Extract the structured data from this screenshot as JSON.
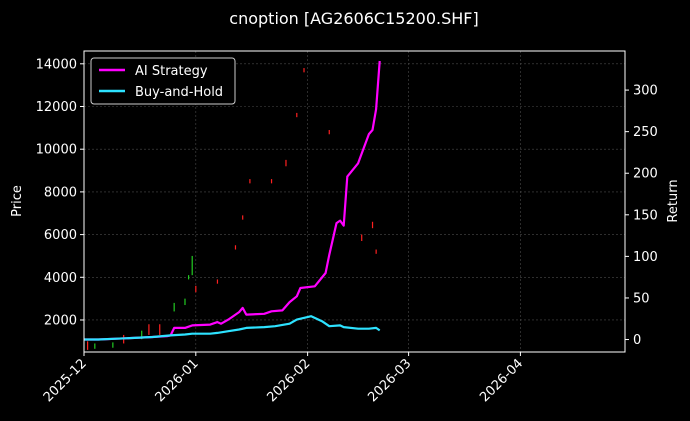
{
  "chart_data": {
    "type": "line",
    "title": "cnoption [AG2606C15200.SHF]",
    "xlabel": "",
    "ylabel_left": "Price",
    "ylabel_right": "Return",
    "x_tick_labels": [
      "2025-12",
      "2026-01",
      "2026-02",
      "2026-03",
      "2026-04"
    ],
    "x_range": [
      "2025-12-01",
      "2026-04-30"
    ],
    "y_left_ticks": [
      2000,
      4000,
      6000,
      8000,
      10000,
      12000,
      14000
    ],
    "y_left_range": [
      500,
      14600
    ],
    "y_right_ticks": [
      0,
      50,
      100,
      150,
      200,
      250,
      300
    ],
    "y_right_range": [
      -15,
      347
    ],
    "grid": true,
    "legend_position": "top-left",
    "colors": {
      "background": "#000000",
      "ai_strategy": "#ff00ff",
      "buy_and_hold": "#2de2ff",
      "candle_up": "#ff2020",
      "candle_down": "#22cc22",
      "grid": "#4a4a4a"
    },
    "series": [
      {
        "name": "AI Strategy",
        "axis": "right",
        "points": [
          [
            "2025-12-01",
            0
          ],
          [
            "2025-12-05",
            0
          ],
          [
            "2025-12-10",
            1
          ],
          [
            "2025-12-15",
            2
          ],
          [
            "2025-12-20",
            3
          ],
          [
            "2025-12-24",
            4
          ],
          [
            "2025-12-25",
            5
          ],
          [
            "2025-12-26",
            14
          ],
          [
            "2025-12-29",
            14
          ],
          [
            "2025-12-31",
            17
          ],
          [
            "2026-01-05",
            18
          ],
          [
            "2026-01-07",
            21
          ],
          [
            "2026-01-08",
            19
          ],
          [
            "2026-01-10",
            24
          ],
          [
            "2026-01-13",
            33
          ],
          [
            "2026-01-14",
            38
          ],
          [
            "2026-01-15",
            30
          ],
          [
            "2026-01-20",
            31
          ],
          [
            "2026-01-22",
            34
          ],
          [
            "2026-01-25",
            35
          ],
          [
            "2026-01-27",
            45
          ],
          [
            "2026-01-29",
            52
          ],
          [
            "2026-01-30",
            62
          ],
          [
            "2026-02-03",
            64
          ],
          [
            "2026-02-06",
            80
          ],
          [
            "2026-02-07",
            102
          ],
          [
            "2026-02-09",
            140
          ],
          [
            "2026-02-10",
            143
          ],
          [
            "2026-02-11",
            137
          ],
          [
            "2026-02-12",
            196
          ],
          [
            "2026-02-15",
            212
          ],
          [
            "2026-02-18",
            247
          ],
          [
            "2026-02-19",
            252
          ],
          [
            "2026-02-20",
            277
          ],
          [
            "2026-02-21",
            335
          ]
        ]
      },
      {
        "name": "Buy-and-Hold",
        "axis": "right",
        "points": [
          [
            "2025-12-01",
            0
          ],
          [
            "2025-12-05",
            0
          ],
          [
            "2025-12-10",
            1
          ],
          [
            "2025-12-15",
            2
          ],
          [
            "2025-12-20",
            3
          ],
          [
            "2025-12-25",
            5
          ],
          [
            "2025-12-29",
            6
          ],
          [
            "2025-12-31",
            7
          ],
          [
            "2026-01-05",
            7
          ],
          [
            "2026-01-07",
            8
          ],
          [
            "2026-01-10",
            10
          ],
          [
            "2026-01-13",
            12
          ],
          [
            "2026-01-15",
            14
          ],
          [
            "2026-01-20",
            15
          ],
          [
            "2026-01-23",
            16
          ],
          [
            "2026-01-27",
            19
          ],
          [
            "2026-01-29",
            24
          ],
          [
            "2026-02-02",
            28
          ],
          [
            "2026-02-05",
            22
          ],
          [
            "2026-02-07",
            16
          ],
          [
            "2026-02-10",
            17
          ],
          [
            "2026-02-11",
            15
          ],
          [
            "2026-02-15",
            13
          ],
          [
            "2026-02-18",
            13
          ],
          [
            "2026-02-20",
            14
          ],
          [
            "2026-02-21",
            11
          ]
        ]
      }
    ],
    "price_markers": [
      {
        "date": "2025-12-02",
        "low": 600,
        "high": 1000,
        "dir": "up"
      },
      {
        "date": "2025-12-04",
        "low": 650,
        "high": 900,
        "dir": "down"
      },
      {
        "date": "2025-12-09",
        "low": 700,
        "high": 950,
        "dir": "down"
      },
      {
        "date": "2025-12-12",
        "low": 900,
        "high": 1300,
        "dir": "up"
      },
      {
        "date": "2025-12-17",
        "low": 1100,
        "high": 1500,
        "dir": "down"
      },
      {
        "date": "2025-12-19",
        "low": 1300,
        "high": 1800,
        "dir": "up"
      },
      {
        "date": "2025-12-22",
        "low": 1300,
        "high": 1800,
        "dir": "up"
      },
      {
        "date": "2025-12-26",
        "low": 2400,
        "high": 2800,
        "dir": "down"
      },
      {
        "date": "2025-12-29",
        "low": 2700,
        "high": 3000,
        "dir": "down"
      },
      {
        "date": "2025-12-30",
        "low": 3900,
        "high": 4100,
        "dir": "down"
      },
      {
        "date": "2025-12-31",
        "low": 4100,
        "high": 5000,
        "dir": "down"
      },
      {
        "date": "2026-01-01",
        "low": 3300,
        "high": 3600,
        "dir": "up"
      },
      {
        "date": "2026-01-07",
        "low": 3700,
        "high": 3900,
        "dir": "up"
      },
      {
        "date": "2026-01-12",
        "low": 5300,
        "high": 5500,
        "dir": "up"
      },
      {
        "date": "2026-01-14",
        "low": 6700,
        "high": 6900,
        "dir": "up"
      },
      {
        "date": "2026-01-16",
        "low": 8400,
        "high": 8600,
        "dir": "up"
      },
      {
        "date": "2026-01-22",
        "low": 8400,
        "high": 8600,
        "dir": "up"
      },
      {
        "date": "2026-01-26",
        "low": 9200,
        "high": 9500,
        "dir": "up"
      },
      {
        "date": "2026-01-29",
        "low": 11500,
        "high": 11700,
        "dir": "up"
      },
      {
        "date": "2026-01-31",
        "low": 13600,
        "high": 13800,
        "dir": "up"
      },
      {
        "date": "2026-02-07",
        "low": 10700,
        "high": 10900,
        "dir": "up"
      },
      {
        "date": "2026-02-16",
        "low": 5700,
        "high": 6000,
        "dir": "up"
      },
      {
        "date": "2026-02-19",
        "low": 6300,
        "high": 6600,
        "dir": "up"
      },
      {
        "date": "2026-02-20",
        "low": 5100,
        "high": 5300,
        "dir": "up"
      }
    ]
  }
}
